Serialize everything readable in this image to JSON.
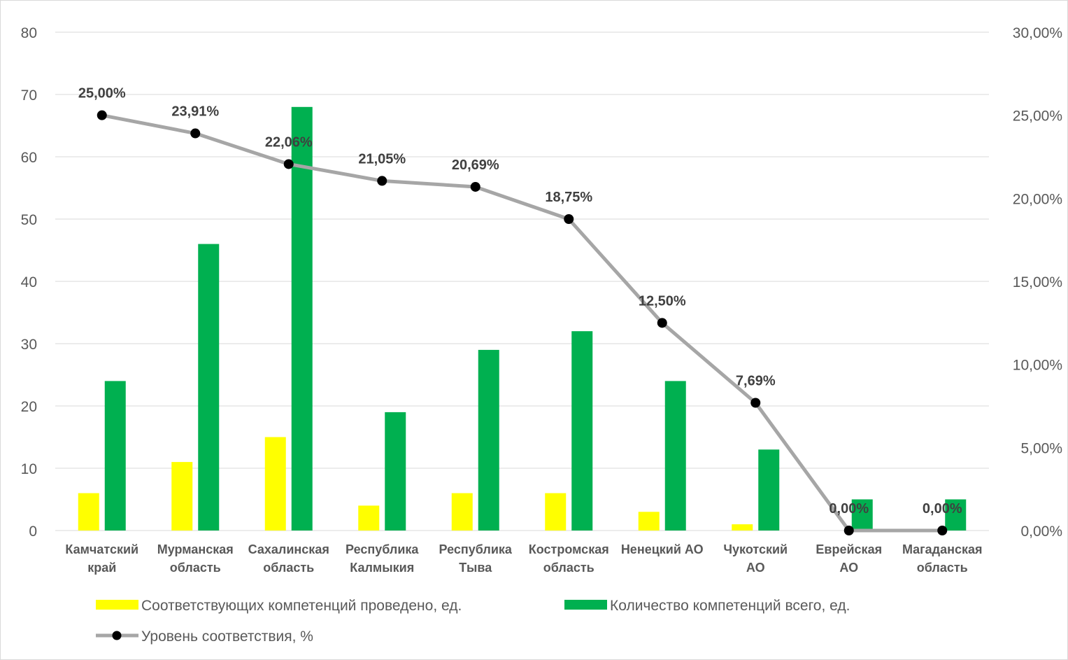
{
  "chart_data": {
    "type": "bar",
    "categories": [
      [
        "Камчатский",
        "край"
      ],
      [
        "Мурманская",
        "область"
      ],
      [
        "Сахалинская",
        "область"
      ],
      [
        "Республика",
        "Калмыкия"
      ],
      [
        "Республика",
        "Тыва"
      ],
      [
        "Костромская",
        "область"
      ],
      [
        "Ненецкий АО"
      ],
      [
        "Чукотский",
        "АО"
      ],
      [
        "Еврейская",
        "АО"
      ],
      [
        "Магаданская",
        "область"
      ]
    ],
    "series": [
      {
        "name": "Соответствующих компетенций проведено, ед.",
        "type": "bar",
        "axis": "left",
        "color": "#ffff00",
        "values": [
          6,
          11,
          15,
          4,
          6,
          6,
          3,
          1,
          0,
          0
        ]
      },
      {
        "name": "Количество компетенций всего, ед.",
        "type": "bar",
        "axis": "left",
        "color": "#00b050",
        "values": [
          24,
          46,
          68,
          19,
          29,
          32,
          24,
          13,
          5,
          5
        ]
      },
      {
        "name": "Уровень соответствия, %",
        "type": "line",
        "axis": "right",
        "color": "#a6a6a6",
        "marker_color": "#000000",
        "values": [
          25.0,
          23.91,
          22.06,
          21.05,
          20.69,
          18.75,
          12.5,
          7.69,
          0.0,
          0.0
        ],
        "labels": [
          "25,00%",
          "23,91%",
          "22,06%",
          "21,05%",
          "20,69%",
          "18,75%",
          "12,50%",
          "7,69%",
          "0,00%",
          "0,00%"
        ]
      }
    ],
    "ylim_left": [
      0,
      80
    ],
    "yticks_left": [
      "0",
      "10",
      "20",
      "30",
      "40",
      "50",
      "60",
      "70",
      "80"
    ],
    "ylim_right": [
      0,
      30
    ],
    "yticks_right": [
      "0,00%",
      "5,00%",
      "10,00%",
      "15,00%",
      "20,00%",
      "25,00%",
      "30,00%"
    ],
    "grid": true,
    "legend_position": "bottom"
  }
}
